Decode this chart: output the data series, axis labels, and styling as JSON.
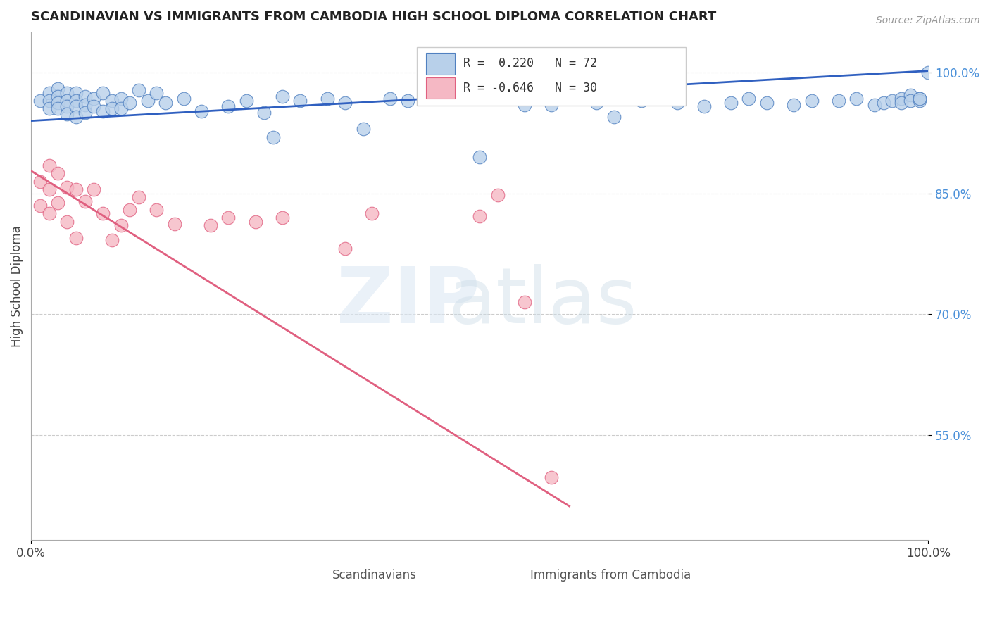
{
  "title": "SCANDINAVIAN VS IMMIGRANTS FROM CAMBODIA HIGH SCHOOL DIPLOMA CORRELATION CHART",
  "source": "Source: ZipAtlas.com",
  "ylabel": "High School Diploma",
  "xlim": [
    0.0,
    1.0
  ],
  "ylim": [
    0.42,
    1.05
  ],
  "yticks": [
    0.55,
    0.7,
    0.85,
    1.0
  ],
  "ytick_labels": [
    "55.0%",
    "70.0%",
    "85.0%",
    "100.0%"
  ],
  "xticks": [
    0.0,
    1.0
  ],
  "xtick_labels": [
    "0.0%",
    "100.0%"
  ],
  "blue_legend_label": "Scandinavians",
  "pink_legend_label": "Immigrants from Cambodia",
  "blue_R": "0.220",
  "blue_N": "72",
  "pink_R": "-0.646",
  "pink_N": "30",
  "blue_color": "#b8d0ea",
  "pink_color": "#f5b8c4",
  "blue_edge_color": "#5080c0",
  "pink_edge_color": "#e06080",
  "blue_line_color": "#3060c0",
  "pink_line_color": "#e06080",
  "background_color": "#ffffff",
  "blue_scatter_x": [
    0.01,
    0.02,
    0.02,
    0.02,
    0.03,
    0.03,
    0.03,
    0.03,
    0.04,
    0.04,
    0.04,
    0.04,
    0.05,
    0.05,
    0.05,
    0.05,
    0.06,
    0.06,
    0.06,
    0.07,
    0.07,
    0.08,
    0.08,
    0.09,
    0.09,
    0.1,
    0.1,
    0.11,
    0.12,
    0.13,
    0.14,
    0.15,
    0.17,
    0.19,
    0.22,
    0.24,
    0.26,
    0.27,
    0.28,
    0.3,
    0.33,
    0.35,
    0.37,
    0.4,
    0.42,
    0.5,
    0.55,
    0.58,
    0.6,
    0.63,
    0.65,
    0.68,
    0.72,
    0.75,
    0.78,
    0.8,
    0.82,
    0.85,
    0.87,
    0.9,
    0.92,
    0.94,
    0.95,
    0.96,
    0.97,
    0.97,
    0.98,
    0.98,
    0.99,
    0.99,
    0.99,
    1.0
  ],
  "blue_scatter_y": [
    0.965,
    0.975,
    0.965,
    0.955,
    0.98,
    0.97,
    0.962,
    0.955,
    0.975,
    0.965,
    0.958,
    0.948,
    0.975,
    0.965,
    0.958,
    0.945,
    0.97,
    0.96,
    0.95,
    0.968,
    0.958,
    0.975,
    0.952,
    0.965,
    0.955,
    0.968,
    0.955,
    0.962,
    0.978,
    0.965,
    0.975,
    0.962,
    0.968,
    0.952,
    0.958,
    0.965,
    0.95,
    0.92,
    0.97,
    0.965,
    0.968,
    0.962,
    0.93,
    0.968,
    0.965,
    0.895,
    0.96,
    0.96,
    0.968,
    0.962,
    0.945,
    0.965,
    0.962,
    0.958,
    0.962,
    0.968,
    0.962,
    0.96,
    0.965,
    0.965,
    0.968,
    0.96,
    0.962,
    0.965,
    0.968,
    0.962,
    0.972,
    0.965,
    0.968,
    0.965,
    0.968,
    1.0
  ],
  "pink_scatter_x": [
    0.01,
    0.01,
    0.02,
    0.02,
    0.02,
    0.03,
    0.03,
    0.04,
    0.04,
    0.05,
    0.05,
    0.06,
    0.07,
    0.08,
    0.09,
    0.1,
    0.11,
    0.12,
    0.14,
    0.16,
    0.2,
    0.22,
    0.25,
    0.28,
    0.35,
    0.38,
    0.5,
    0.52,
    0.55,
    0.58
  ],
  "pink_scatter_y": [
    0.865,
    0.835,
    0.885,
    0.855,
    0.825,
    0.875,
    0.838,
    0.858,
    0.815,
    0.855,
    0.795,
    0.84,
    0.855,
    0.825,
    0.792,
    0.81,
    0.83,
    0.845,
    0.83,
    0.812,
    0.81,
    0.82,
    0.815,
    0.82,
    0.782,
    0.825,
    0.822,
    0.848,
    0.715,
    0.498
  ],
  "blue_trend_x": [
    0.0,
    1.0
  ],
  "blue_trend_y": [
    0.94,
    1.002
  ],
  "pink_trend_x": [
    0.0,
    0.6
  ],
  "pink_trend_y": [
    0.878,
    0.462
  ]
}
